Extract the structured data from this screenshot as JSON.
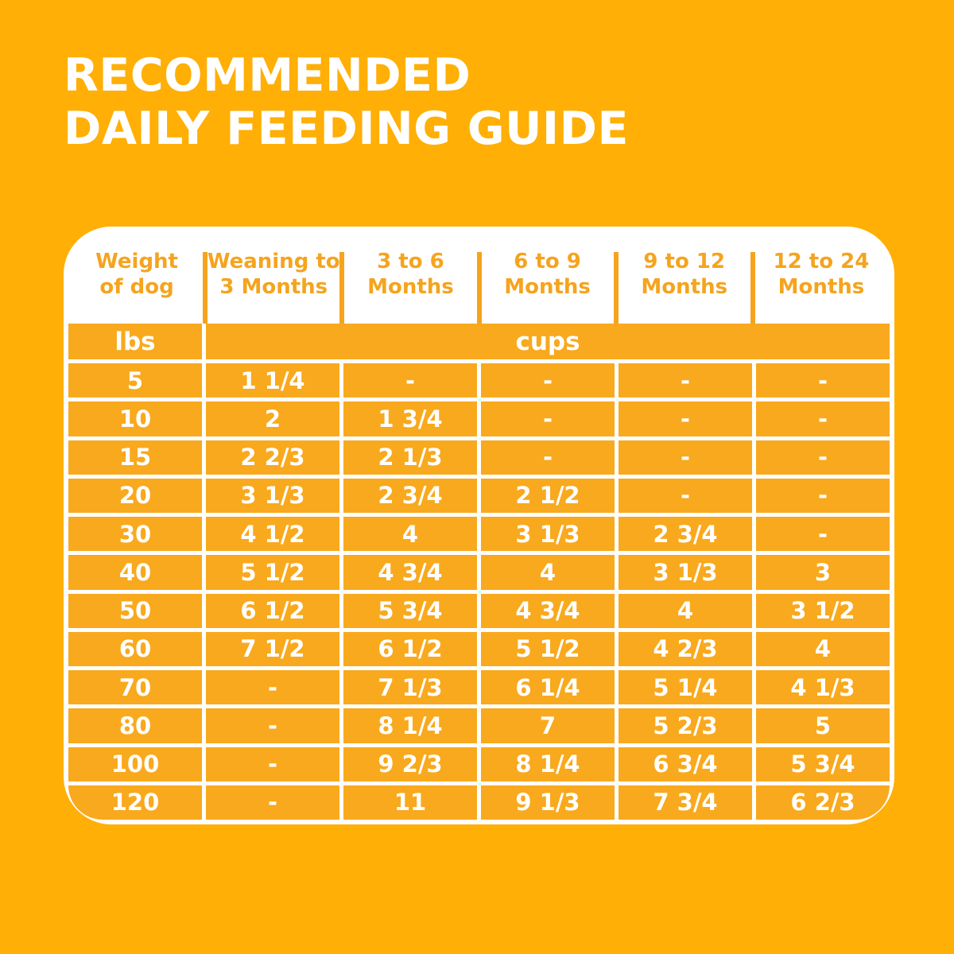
{
  "title": {
    "line1": "RECOMMENDED",
    "line2": "DAILY FEEDING GUIDE"
  },
  "colors": {
    "page_background": "#FFAF05",
    "cell_orange": "#F9A91D",
    "header_text_orange": "#F5A41E",
    "table_white": "#FFFFFF"
  },
  "table": {
    "header": [
      {
        "line1": "Weight",
        "line2": "of dog"
      },
      {
        "line1": "Weaning to",
        "line2": "3 Months"
      },
      {
        "line1": "3 to 6",
        "line2": "Months"
      },
      {
        "line1": "6 to 9",
        "line2": "Months"
      },
      {
        "line1": "9 to 12",
        "line2": "Months"
      },
      {
        "line1": "12 to 24",
        "line2": "Months"
      }
    ],
    "units": {
      "weight": "lbs",
      "amount": "cups"
    }
  },
  "chart_data": {
    "type": "table",
    "title": "RECOMMENDED DAILY FEEDING GUIDE",
    "columns": [
      "Weight of dog (lbs)",
      "Weaning to 3 Months (cups)",
      "3 to 6 Months (cups)",
      "6 to 9 Months (cups)",
      "9 to 12 Months (cups)",
      "12 to 24 Months (cups)"
    ],
    "rows": [
      [
        "5",
        "1 1/4",
        "-",
        "-",
        "-",
        "-"
      ],
      [
        "10",
        "2",
        "1 3/4",
        "-",
        "-",
        "-"
      ],
      [
        "15",
        "2 2/3",
        "2 1/3",
        "-",
        "-",
        "-"
      ],
      [
        "20",
        "3 1/3",
        "2 3/4",
        "2 1/2",
        "-",
        "-"
      ],
      [
        "30",
        "4 1/2",
        "4",
        "3 1/3",
        "2 3/4",
        "-"
      ],
      [
        "40",
        "5 1/2",
        "4 3/4",
        "4",
        "3 1/3",
        "3"
      ],
      [
        "50",
        "6 1/2",
        "5 3/4",
        "4 3/4",
        "4",
        "3 1/2"
      ],
      [
        "60",
        "7 1/2",
        "6 1/2",
        "5 1/2",
        "4 2/3",
        "4"
      ],
      [
        "70",
        "-",
        "7 1/3",
        "6 1/4",
        "5 1/4",
        "4 1/3"
      ],
      [
        "80",
        "-",
        "8 1/4",
        "7",
        "5 2/3",
        "5"
      ],
      [
        "100",
        "-",
        "9 2/3",
        "8 1/4",
        "6 3/4",
        "5 3/4"
      ],
      [
        "120",
        "-",
        "11",
        "9 1/3",
        "7 3/4",
        "6 2/3"
      ]
    ]
  }
}
